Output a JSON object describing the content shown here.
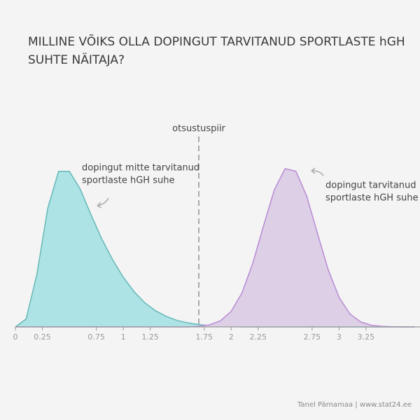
{
  "chart_data": {
    "type": "area",
    "title": [
      "MILLINE VÕIKS OLLA DOPINGUT TARVITANUD SPORTLASTE hGH",
      "SUHTE NÄITAJA?"
    ],
    "x": [
      0,
      0.1,
      0.2,
      0.3,
      0.4,
      0.5,
      0.6,
      0.7,
      0.8,
      0.9,
      1.0,
      1.1,
      1.2,
      1.3,
      1.4,
      1.5,
      1.6,
      1.7,
      1.8,
      1.9,
      2.0,
      2.1,
      2.2,
      2.3,
      2.4,
      2.5,
      2.6,
      2.7,
      2.8,
      2.9,
      3.0,
      3.1,
      3.2,
      3.3,
      3.4,
      3.5,
      3.6,
      3.7
    ],
    "series": [
      {
        "label": [
          "dopingut mitte tarvitanud",
          "sportlaste hGH suhe"
        ],
        "color": "#66b8b8",
        "fill": "#ade3e4",
        "values": [
          0,
          0.05,
          0.33,
          0.74,
          0.97,
          0.97,
          0.86,
          0.7,
          0.55,
          0.42,
          0.31,
          0.22,
          0.15,
          0.1,
          0.065,
          0.04,
          0.025,
          0.015,
          0.008,
          0.004,
          0.002,
          0,
          0,
          0,
          0,
          0,
          0,
          0,
          0,
          0,
          0,
          0,
          0,
          0,
          0,
          0,
          0,
          0
        ]
      },
      {
        "label": [
          "dopingut tarvitanud",
          "sportlaste hGH suhe"
        ],
        "color": "#b98bd4",
        "fill": "#dccfe6",
        "values": [
          0,
          0,
          0,
          0,
          0,
          0,
          0,
          0,
          0,
          0,
          0,
          0,
          0,
          0,
          0,
          0,
          0,
          0.004,
          0.013,
          0.038,
          0.097,
          0.212,
          0.397,
          0.631,
          0.855,
          0.987,
          0.971,
          0.815,
          0.582,
          0.355,
          0.184,
          0.081,
          0.031,
          0.01,
          0.003,
          0.001,
          0,
          0
        ]
      }
    ],
    "threshold": {
      "value": 1.7,
      "label": "otsustuspiir"
    },
    "xlim": [
      0,
      3.75
    ],
    "ylim": [
      0,
      1.1
    ],
    "xticks": [
      0,
      0.25,
      0.75,
      1,
      1.25,
      1.75,
      2,
      2.25,
      2.75,
      3,
      3.25
    ],
    "credit": "Tanel Pärnamaa | www.stat24.ee"
  }
}
